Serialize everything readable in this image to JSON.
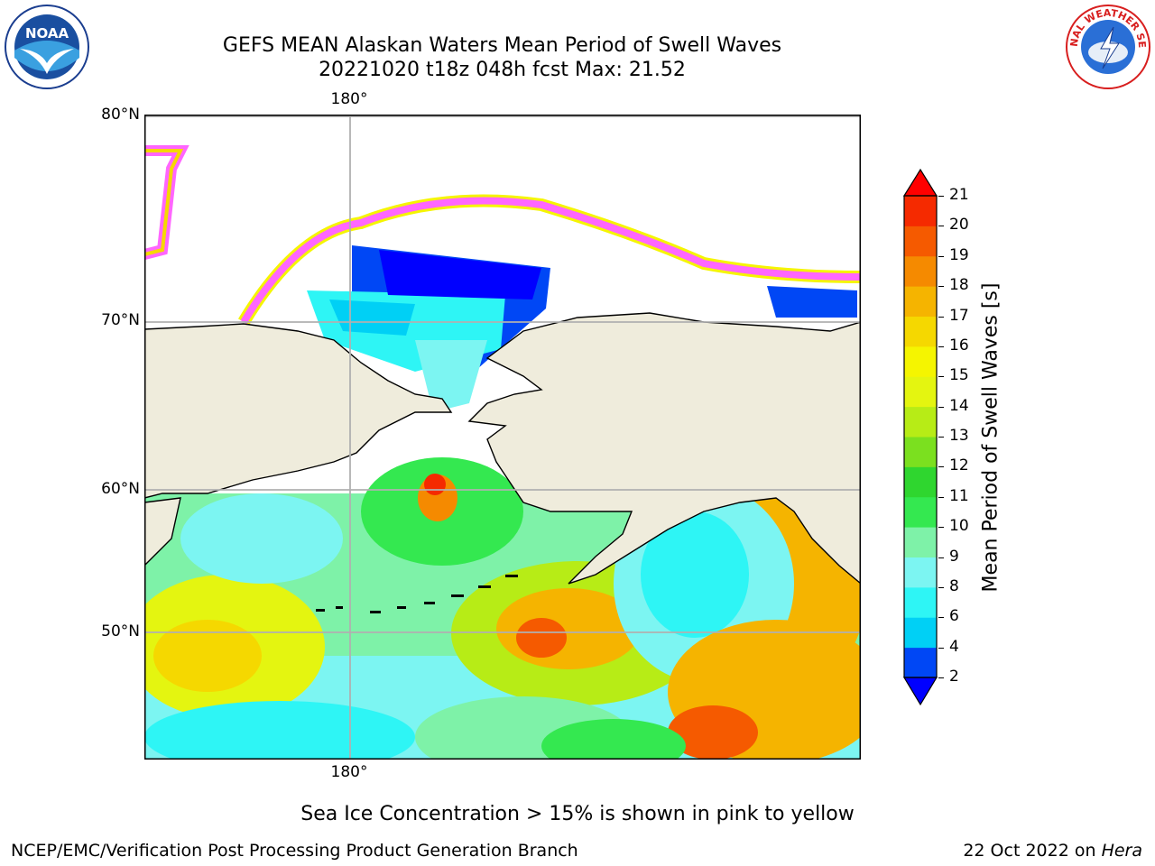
{
  "header": {
    "title_line1": "GEFS MEAN Alaskan Waters Mean Period of Swell Waves",
    "title_line2": "20221020 t18z 048h fcst   Max: 21.52"
  },
  "map": {
    "lat_labels": [
      "80°N",
      "70°N",
      "60°N",
      "50°N"
    ],
    "lon_label_top": "180°",
    "lon_label_bottom": "180°",
    "land_color": "#efecdc",
    "grid_color": "#b0b0b0"
  },
  "colorbar": {
    "label": "Mean Period of Swell Waves [s]",
    "ticks": [
      "2",
      "4",
      "6",
      "8",
      "9",
      "10",
      "11",
      "12",
      "13",
      "14",
      "15",
      "16",
      "17",
      "18",
      "19",
      "20",
      "21"
    ],
    "colors": [
      "#0047f5",
      "#00d0f5",
      "#2ef5f5",
      "#7cf5f2",
      "#7ef2a8",
      "#34e850",
      "#2fd62f",
      "#7be01f",
      "#b7ec16",
      "#e4f510",
      "#f5f500",
      "#f5d800",
      "#f5b400",
      "#f58a00",
      "#f55a00",
      "#f52a00"
    ],
    "extend_low_color": "#0000ff",
    "extend_high_color": "#ff0000"
  },
  "footer": {
    "ice_note": "Sea Ice Concentration > 15% is shown in pink to yellow",
    "left": "NCEP/EMC/Verification Post Processing Product Generation Branch",
    "right_prefix": "22 Oct 2022 on ",
    "right_italic": "Hera"
  },
  "logos": {
    "noaa": "NOAA",
    "nws": "NATIONAL WEATHER SERVICE"
  }
}
